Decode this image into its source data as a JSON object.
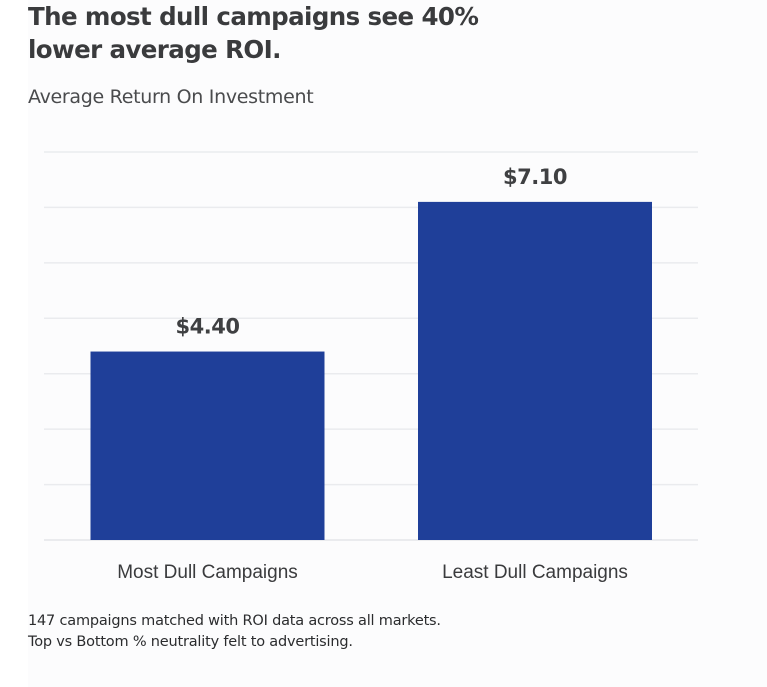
{
  "header": {
    "title_line1": "The most dull campaigns see 40%",
    "title_line2": "lower average ROI.",
    "subtitle": "Average Return On Investment"
  },
  "footnote": {
    "line1": "147 campaigns matched with ROI data across all markets.",
    "line2": "Top vs Bottom % neutrality felt to advertising."
  },
  "colors": {
    "bar": "#1f3f99",
    "grid": "#eaebee"
  },
  "chart_data": {
    "type": "bar",
    "title": "The most dull campaigns see 40% lower average ROI.",
    "subtitle": "Average Return On Investment",
    "xlabel": "",
    "ylabel": "",
    "categories": [
      "Most Dull Campaigns",
      "Least Dull Campaigns"
    ],
    "values": [
      4.4,
      7.1
    ],
    "data_labels": [
      "$4.40",
      "$7.10"
    ],
    "ylim": [
      1,
      8
    ],
    "grid": true,
    "gridline_count": 8,
    "legend": "none"
  }
}
